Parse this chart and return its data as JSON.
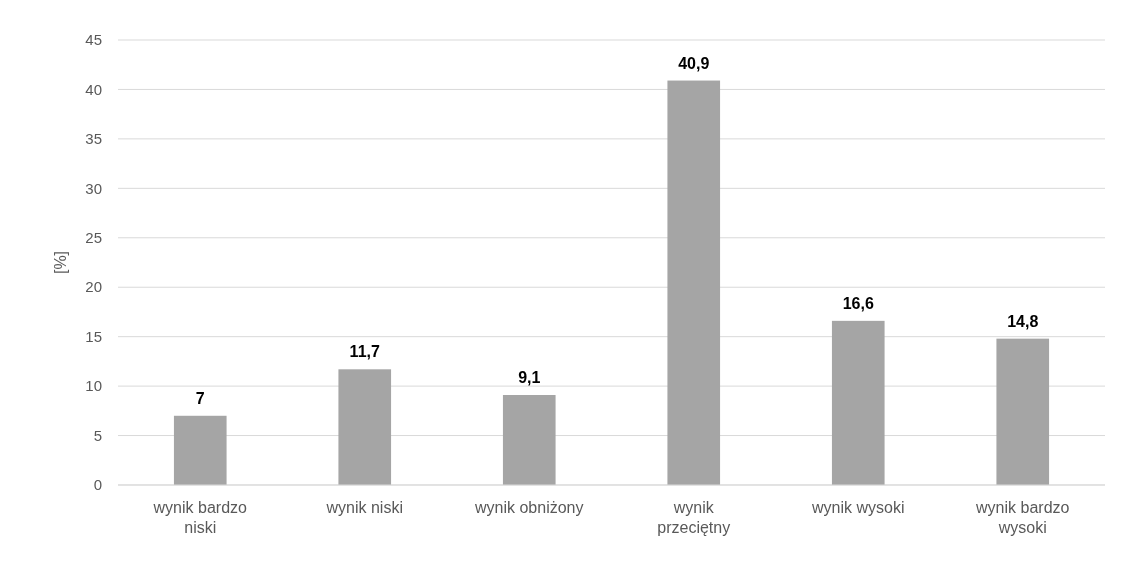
{
  "chart_data": {
    "type": "bar",
    "ylabel": "[%]",
    "categories": [
      "wynik bardzo niski",
      "wynik niski",
      "wynik obniżony",
      "wynik przeciętny",
      "wynik wysoki",
      "wynik bardzo wysoki"
    ],
    "values": [
      7,
      11.7,
      9.1,
      40.9,
      16.6,
      14.8
    ],
    "value_labels": [
      "7",
      "11,7",
      "9,1",
      "40,9",
      "16,6",
      "14,8"
    ],
    "color": "#a5a5a5",
    "ylim": [
      0,
      45
    ],
    "yticks": [
      0,
      5,
      10,
      15,
      20,
      25,
      30,
      35,
      40,
      45
    ],
    "grid": "y"
  }
}
